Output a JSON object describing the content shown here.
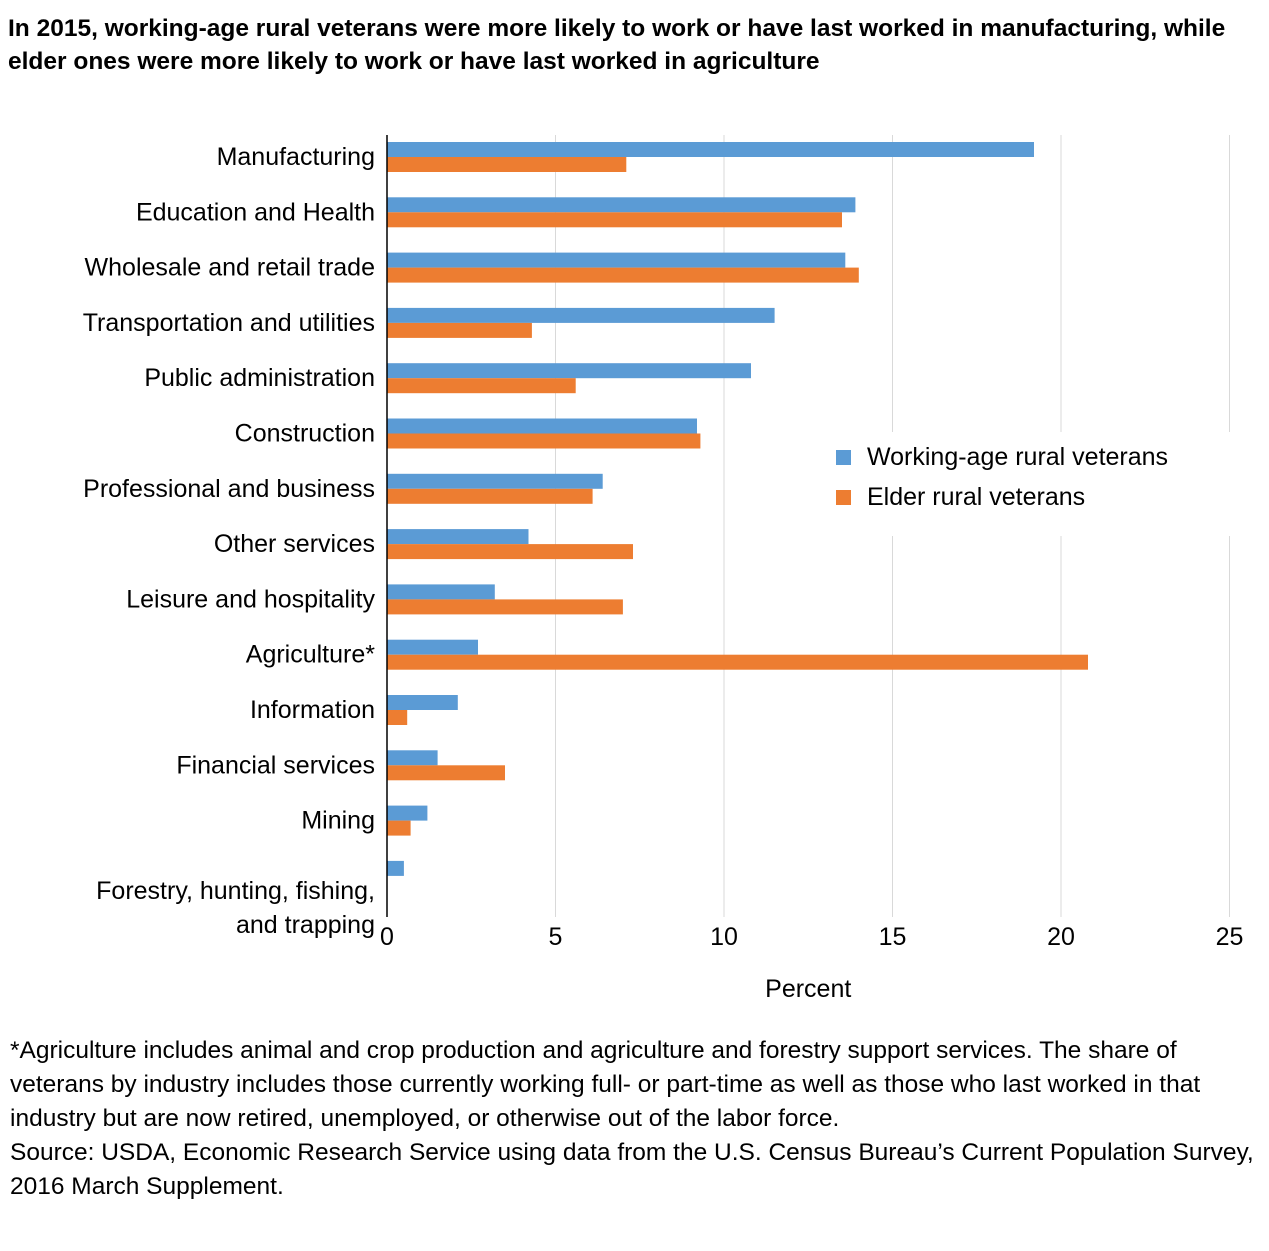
{
  "title": "In 2015, working-age rural veterans were more likely to work or have last worked in manufacturing, while elder ones were more likely to work or have last worked in agriculture",
  "colors": {
    "working_age": "#5b9bd5",
    "elder": "#ed7d31",
    "grid": "#d9d9d9",
    "axis": "#000000"
  },
  "chart_data": {
    "type": "bar",
    "orientation": "horizontal",
    "categories": [
      "Manufacturing",
      "Education and Health",
      "Wholesale and retail trade",
      "Transportation and utilities",
      "Public administration",
      "Construction",
      "Professional and business",
      "Other services",
      "Leisure and hospitality",
      "Agriculture*",
      "Information",
      "Financial services",
      "Mining",
      "Forestry, hunting, fishing, and trapping"
    ],
    "series": [
      {
        "name": "Working-age rural veterans",
        "values": [
          19.2,
          13.9,
          13.6,
          11.5,
          10.8,
          9.2,
          6.4,
          4.2,
          3.2,
          2.7,
          2.1,
          1.5,
          1.2,
          0.5
        ]
      },
      {
        "name": "Elder rural veterans",
        "values": [
          7.1,
          13.5,
          14.0,
          4.3,
          5.6,
          9.3,
          6.1,
          7.3,
          7.0,
          20.8,
          0.6,
          3.5,
          0.7,
          0.0
        ]
      }
    ],
    "xlabel": "Percent",
    "ylabel": "",
    "xlim": [
      0,
      25
    ],
    "xticks": [
      "0",
      "5",
      "10",
      "15",
      "20",
      "25"
    ],
    "grid": true,
    "legend_position": "right"
  },
  "notes": {
    "footnote": "*Agriculture includes animal and crop production and agriculture and forestry support services. The share of veterans by industry includes those currently working full- or part-time as well as those who last worked in that industry but are now retired, unemployed, or otherwise out of the labor force.",
    "source": "Source: USDA, Economic Research Service using data from the U.S. Census Bureau’s Current Population Survey, 2016 March Supplement."
  }
}
